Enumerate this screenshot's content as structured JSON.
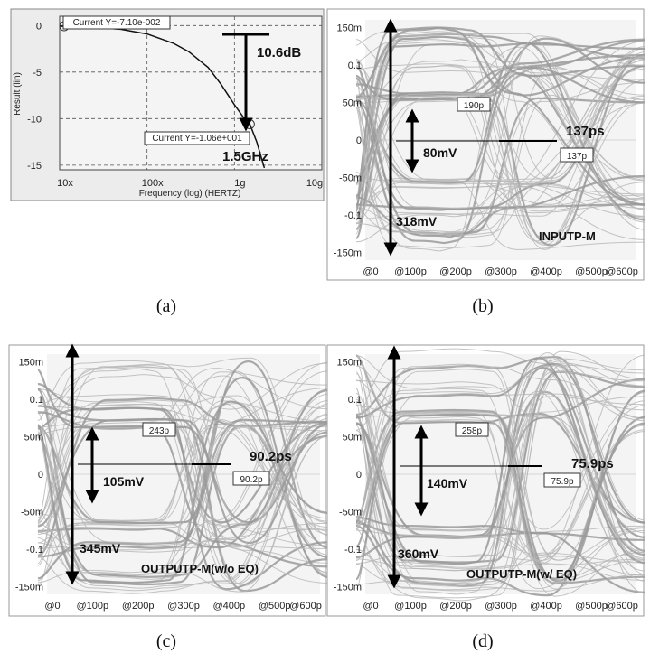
{
  "chart_data": [
    {
      "type": "line",
      "panel_label": "(a)",
      "xlabel": "Frequency (log) (HERTZ)",
      "ylabel": "Result (lin)",
      "x_tick_labels": [
        "10x",
        "100x",
        "1g",
        "10g"
      ],
      "y_tick_labels": [
        "0",
        "-5",
        "-10",
        "-15"
      ],
      "x_scale": "log",
      "xlim": [
        10000000,
        10000000000
      ],
      "ylim": [
        -15.5,
        1
      ],
      "grid": "dashed",
      "series": [
        {
          "x": [
            10000000,
            20000000,
            50000000,
            100000000,
            200000000,
            300000000,
            500000000,
            700000000,
            1000000000,
            1300000000,
            1500000000,
            1800000000,
            2200000000
          ],
          "y": [
            -0.07,
            -0.15,
            -0.4,
            -0.9,
            -1.9,
            -2.8,
            -4.5,
            -6.3,
            -8.5,
            -10.0,
            -10.6,
            -12.5,
            -15.3
          ]
        }
      ],
      "cursor_labels": [
        "Current Y=-7.10e-002",
        "Current Y=-1.06e+001"
      ],
      "cursor_points": [
        {
          "x": 10000000,
          "y": -0.071
        },
        {
          "x": 1500000000,
          "y": -10.6
        }
      ],
      "annotations": [
        "10.6dB",
        "1.5GHz"
      ]
    },
    {
      "type": "eye-diagram",
      "panel_label": "(b)",
      "x_tick_labels": [
        "@0",
        "@100p",
        "@200p",
        "@300p",
        "@400p",
        "@500p",
        "@600p"
      ],
      "y_tick_labels": [
        "150m",
        "0.1",
        "50m",
        "0",
        "-50m",
        "-0.1",
        "-150m"
      ],
      "xlim": [
        0,
        600
      ],
      "ylim": [
        -0.16,
        0.16
      ],
      "eye_width_label": "137ps",
      "eye_width_box": "137p",
      "crossing_box": "190p",
      "eye_height_label": "80mV",
      "full_swing_label": "318mV",
      "signal_label": "INPUTP-M"
    },
    {
      "type": "eye-diagram",
      "panel_label": "(c)",
      "x_tick_labels": [
        "@0",
        "@100p",
        "@200p",
        "@300p",
        "@400p",
        "@500p",
        "@600p"
      ],
      "y_tick_labels": [
        "150m",
        "0.1",
        "50m",
        "0",
        "-50m",
        "-0.1",
        "-150m"
      ],
      "xlim": [
        0,
        600
      ],
      "ylim": [
        -0.16,
        0.16
      ],
      "eye_width_label": "90.2ps",
      "eye_width_box": "90.2p",
      "crossing_box": "243p",
      "eye_height_label": "105mV",
      "full_swing_label": "345mV",
      "signal_label": "OUTPUTP-M(w/o EQ)"
    },
    {
      "type": "eye-diagram",
      "panel_label": "(d)",
      "x_tick_labels": [
        "@0",
        "@100p",
        "@200p",
        "@300p",
        "@400p",
        "@500p",
        "@600p"
      ],
      "y_tick_labels": [
        "150m",
        "0.1",
        "50m",
        "0",
        "-50m",
        "-0.1",
        "-150m"
      ],
      "xlim": [
        0,
        600
      ],
      "ylim": [
        -0.16,
        0.16
      ],
      "eye_width_label": "75.9ps",
      "eye_width_box": "75.9p",
      "crossing_box": "258p",
      "eye_height_label": "140mV",
      "full_swing_label": "360mV",
      "signal_label": "OUTPUTP-M(w/ EQ)"
    }
  ],
  "colors": {
    "trace": "#111111",
    "eye": "#b8b8b8",
    "eye_dense": "#9a9a9a",
    "arrow": "#000000"
  }
}
